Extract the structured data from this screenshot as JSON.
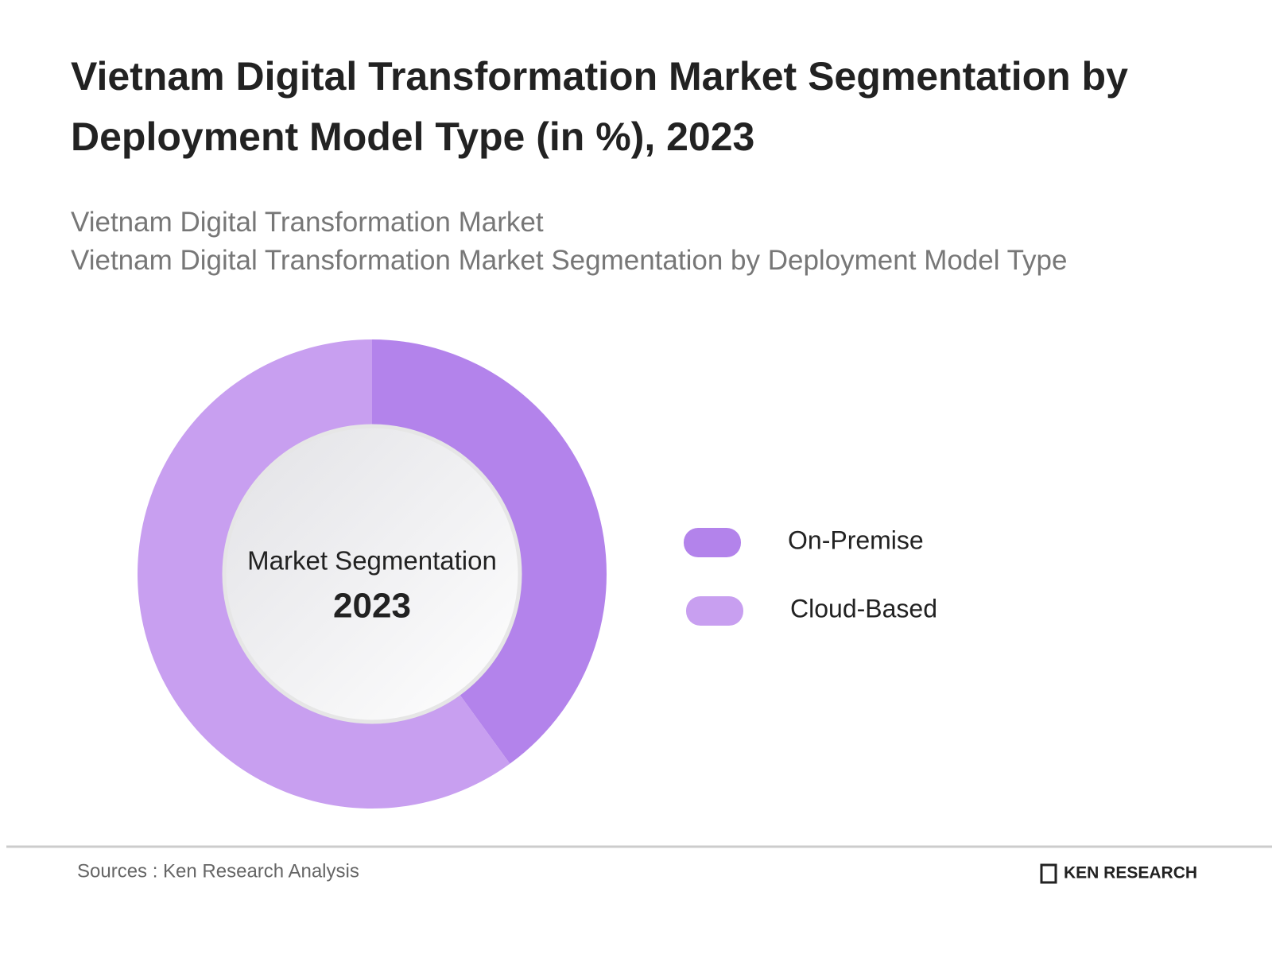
{
  "chart_data": {
    "type": "donut",
    "title": "Vietnam Digital Transformation Market Segmentation by Deployment Model Type (in %), 2023",
    "subtitles": [
      "Vietnam Digital Transformation Market",
      "Vietnam Digital Transformation Market Segmentation by Deployment Model Type"
    ],
    "center_label": "Market Segmentation",
    "center_year": "2023",
    "categories": [
      "On-Premise",
      "Cloud-Based"
    ],
    "values": [
      40,
      60
    ],
    "colors": [
      "#b383eb",
      "#c89ff0"
    ]
  },
  "footer": {
    "source": "Sources : Ken Research Analysis",
    "brand": "KEN RESEARCH"
  }
}
